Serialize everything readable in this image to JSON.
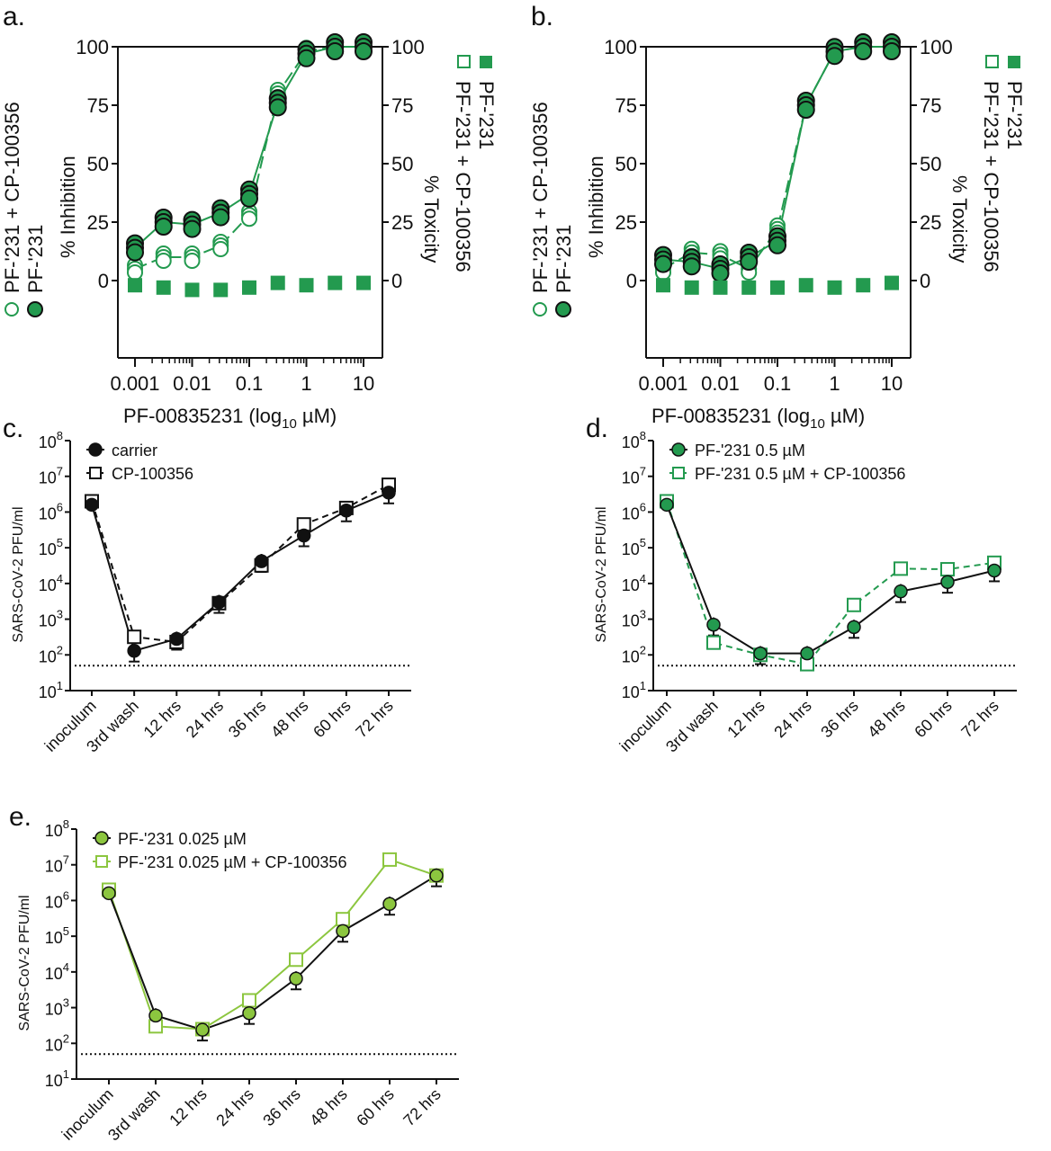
{
  "colors": {
    "green": "#239a4f",
    "light_green": "#8cc63f",
    "black": "#111111"
  },
  "chart_data": [
    {
      "panel": "a.",
      "type": "scatter",
      "xlabel": "PF-00835231 (log",
      "xlabel_sub": "10",
      "xlabel_end": " µM)",
      "ylabel": "% Inhibition",
      "ylabel_right": "% Toxicity",
      "x": [
        0.001,
        0.00316,
        0.01,
        0.0316,
        0.1,
        0.316,
        1,
        3.16,
        10
      ],
      "xticks": [
        "0.001",
        "0.01",
        "0.1",
        "1",
        "10"
      ],
      "yticks": [
        "0",
        "25",
        "50",
        "75",
        "100"
      ],
      "ylim": [
        -33,
        100
      ],
      "series": [
        {
          "name": "PF-'231",
          "values": [
            14,
            25,
            24,
            29,
            37,
            76,
            97,
            100,
            100
          ]
        },
        {
          "name": "PF-'231 + CP-100356",
          "values": [
            5,
            10,
            10,
            15,
            28,
            80,
            98,
            100,
            100
          ]
        },
        {
          "name": "Toxicity",
          "values": [
            -2,
            -3,
            -4,
            -4,
            -3,
            -1,
            -2,
            -1,
            -1
          ]
        }
      ],
      "legend_left": [
        "PF-'231 + CP-100356",
        "PF-'231"
      ],
      "legend_right": [
        "PF-'231 + CP-100356",
        "PF-'231"
      ]
    },
    {
      "panel": "b.",
      "type": "scatter",
      "xlabel": "PF-00835231 (log",
      "xlabel_sub": "10",
      "xlabel_end": " µM)",
      "ylabel": "% Inhibition",
      "ylabel_right": "% Toxicity",
      "x": [
        0.001,
        0.00316,
        0.01,
        0.0316,
        0.1,
        0.316,
        1,
        3.16,
        10
      ],
      "xticks": [
        "0.001",
        "0.01",
        "0.1",
        "1",
        "10"
      ],
      "yticks": [
        "0",
        "25",
        "50",
        "75",
        "100"
      ],
      "ylim": [
        -33,
        100
      ],
      "series": [
        {
          "name": "PF-'231",
          "values": [
            9,
            8,
            5,
            10,
            17,
            75,
            98,
            100,
            100
          ]
        },
        {
          "name": "PF-'231 + CP-100356",
          "values": [
            5,
            12,
            11,
            5,
            22,
            75,
            98,
            100,
            100
          ]
        },
        {
          "name": "Toxicity",
          "values": [
            -2,
            -3,
            -3,
            -3,
            -3,
            -2,
            -3,
            -2,
            -1
          ]
        }
      ],
      "legend_left": [
        "PF-'231 + CP-100356",
        "PF-'231"
      ],
      "legend_right": [
        "PF-'231 + CP-100356",
        "PF-'231"
      ]
    },
    {
      "panel": "c.",
      "type": "line",
      "ylabel": "SARS-CoV-2 PFU/ml",
      "categories": [
        "inoculum",
        "3rd wash",
        "12 hrs",
        "24 hrs",
        "36 hrs",
        "48 hrs",
        "60 hrs",
        "72 hrs"
      ],
      "ylim_log10": [
        1,
        8
      ],
      "limit_of_detection": 50,
      "series": [
        {
          "name": "carrier",
          "values": [
            1600000,
            130,
            280,
            3000,
            42000,
            220000,
            1100000,
            3500000
          ]
        },
        {
          "name": "CP-100356",
          "values": [
            2000000,
            320,
            230,
            2800,
            32000,
            450000,
            1300000,
            5800000
          ]
        }
      ]
    },
    {
      "panel": "d.",
      "type": "line",
      "ylabel": "SARS-CoV-2 PFU/ml",
      "categories": [
        "inoculum",
        "3rd wash",
        "12 hrs",
        "24 hrs",
        "36 hrs",
        "48 hrs",
        "60 hrs",
        "72 hrs"
      ],
      "ylim_log10": [
        1,
        8
      ],
      "limit_of_detection": 50,
      "series": [
        {
          "name": "PF-'231 0.5 µM",
          "values": [
            1600000,
            700,
            110,
            110,
            600,
            6000,
            11000,
            23000
          ]
        },
        {
          "name": "PF-'231 0.5 µM + CP-100356",
          "values": [
            2000000,
            220,
            100,
            55,
            2500,
            26000,
            25000,
            38000
          ]
        }
      ]
    },
    {
      "panel": "e.",
      "type": "line",
      "ylabel": "SARS-CoV-2 PFU/ml",
      "categories": [
        "inoculum",
        "3rd wash",
        "12 hrs",
        "24 hrs",
        "36 hrs",
        "48 hrs",
        "60 hrs",
        "72 hrs"
      ],
      "ylim_log10": [
        1,
        8
      ],
      "limit_of_detection": 50,
      "series": [
        {
          "name": "PF-'231 0.025 µM",
          "values": [
            1600000,
            600,
            240,
            700,
            6500,
            140000,
            800000,
            5000000
          ]
        },
        {
          "name": "PF-'231 0.025 µM + CP-100356",
          "values": [
            2000000,
            300,
            250,
            1600,
            22000,
            300000,
            14000000,
            5000000
          ]
        }
      ]
    }
  ]
}
